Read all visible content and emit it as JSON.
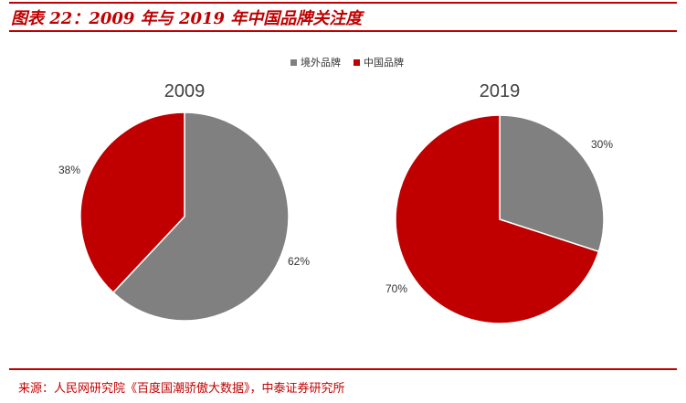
{
  "title": "图表 22：2009 年与 2019 年中国品牌关注度",
  "source": "来源：人民网研究院《百度国潮骄傲大数据》，中泰证券研究所",
  "colors": {
    "accent": "#c00000",
    "foreign": "#808080",
    "china": "#c00000"
  },
  "legend": [
    {
      "label": "境外品牌",
      "color": "#808080"
    },
    {
      "label": "中国品牌",
      "color": "#c00000"
    }
  ],
  "chart_data": [
    {
      "type": "pie",
      "title": "2009",
      "slices": [
        {
          "label": "境外品牌",
          "value": 62,
          "display": "62%",
          "color": "#808080"
        },
        {
          "label": "中国品牌",
          "value": 38,
          "display": "38%",
          "color": "#c00000"
        }
      ]
    },
    {
      "type": "pie",
      "title": "2019",
      "slices": [
        {
          "label": "境外品牌",
          "value": 30,
          "display": "30%",
          "color": "#808080"
        },
        {
          "label": "中国品牌",
          "value": 70,
          "display": "70%",
          "color": "#c00000"
        }
      ]
    }
  ]
}
